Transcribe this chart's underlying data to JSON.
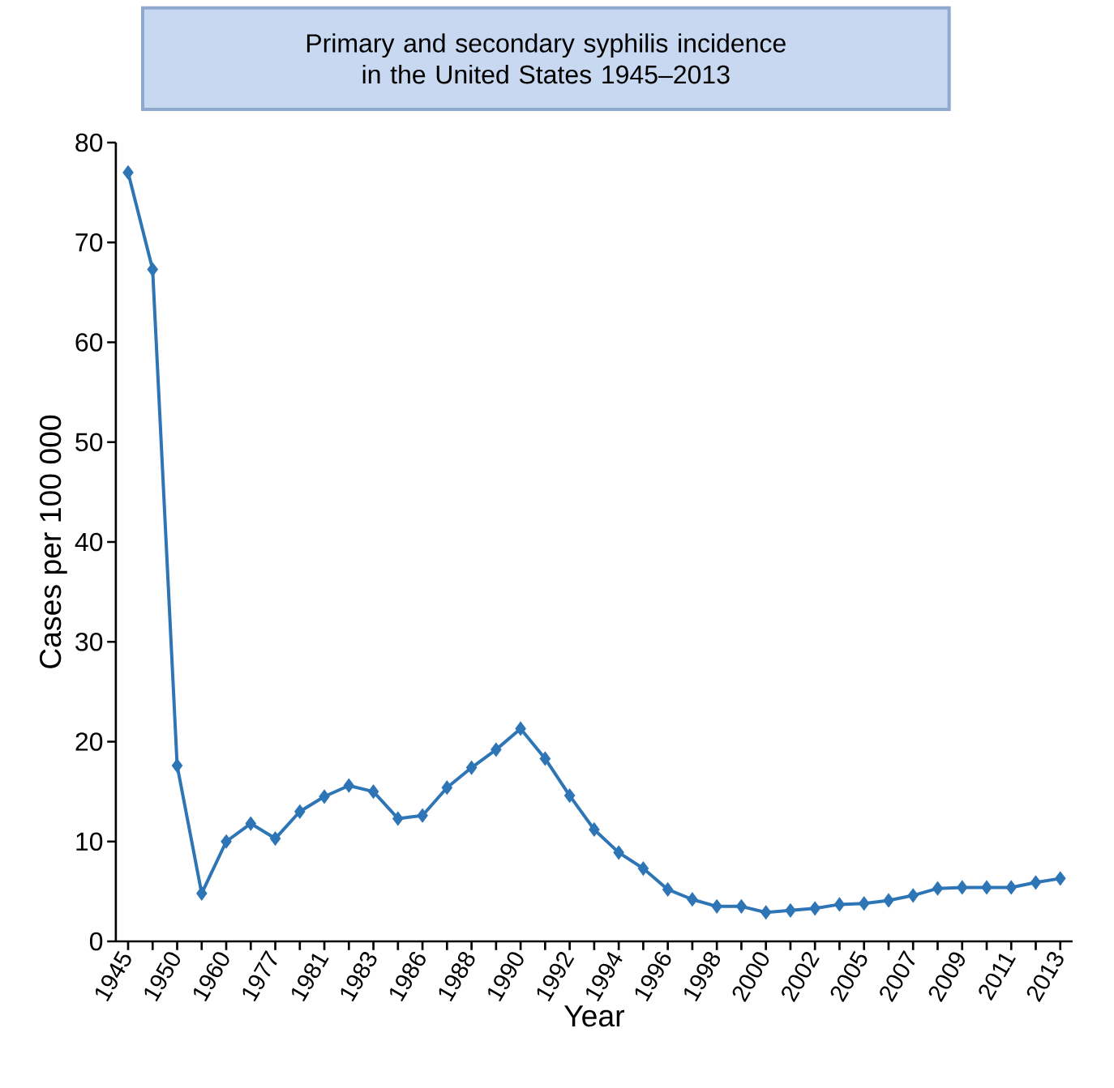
{
  "chart_data": {
    "type": "line",
    "title": "Primary and secondary syphilis incidence in the United States 1945–2013",
    "xlabel": "Year",
    "ylabel": "Cases per 100 000",
    "categories": [
      "1945",
      null,
      "1950",
      null,
      "1960",
      null,
      "1977",
      null,
      "1981",
      null,
      "1983",
      null,
      "1986",
      null,
      "1988",
      null,
      "1990",
      null,
      "1992",
      null,
      "1994",
      null,
      "1996",
      null,
      "1998",
      null,
      "2000",
      null,
      "2002",
      null,
      "2005",
      null,
      "2007",
      null,
      "2009",
      null,
      "2011",
      null,
      "2013"
    ],
    "series": [
      {
        "color": "#2e75b6",
        "values": [
          77.0,
          67.3,
          17.6,
          4.8,
          10.0,
          11.8,
          10.3,
          13.0,
          14.5,
          15.6,
          15.0,
          12.3,
          12.6,
          15.4,
          17.4,
          19.2,
          21.3,
          18.3,
          14.6,
          11.2,
          8.9,
          7.3,
          5.2,
          4.2,
          3.5,
          3.5,
          2.9,
          3.1,
          3.3,
          3.7,
          3.8,
          4.1,
          4.6,
          5.3,
          5.4,
          5.4,
          5.4,
          5.9,
          6.3
        ]
      }
    ],
    "ylim": [
      0,
      80
    ],
    "yticks": [
      0,
      10,
      20,
      30,
      40,
      50,
      60,
      70,
      80
    ],
    "marker": "diamond",
    "line_style": "solid"
  }
}
